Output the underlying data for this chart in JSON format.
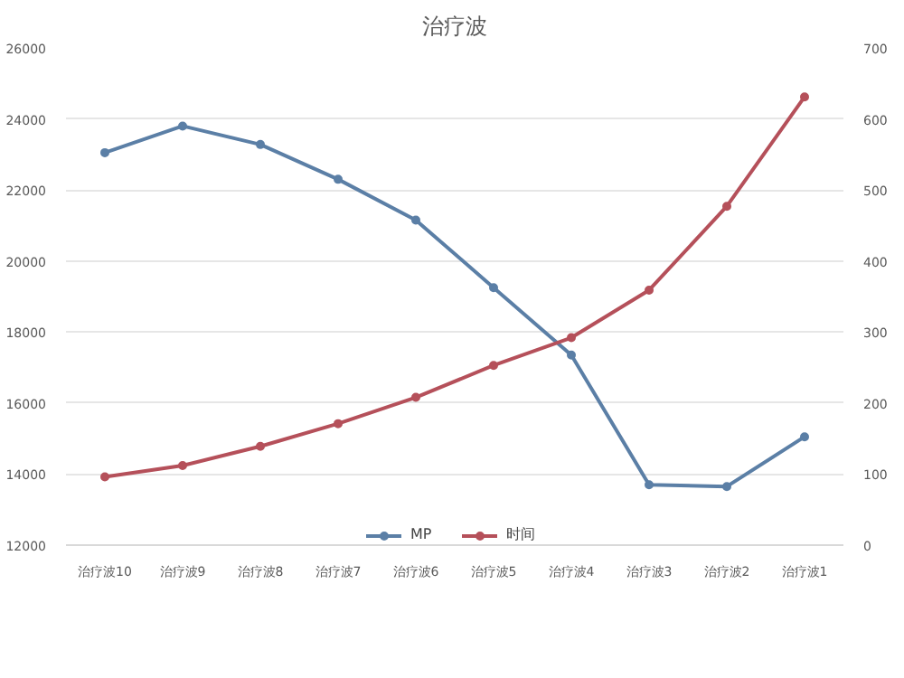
{
  "chart_data": {
    "type": "line",
    "title": "治疗波",
    "categories": [
      "治疗波10",
      "治疗波9",
      "治疗波8",
      "治疗波7",
      "治疗波6",
      "治疗波5",
      "治疗波4",
      "治疗波3",
      "治疗波2",
      "治疗波1"
    ],
    "series": [
      {
        "name": "MP",
        "color": "#5b7fa6",
        "values": [
          23050,
          23800,
          23280,
          22300,
          21150,
          19250,
          17350,
          13700,
          13650,
          15050
        ]
      },
      {
        "name": "时间",
        "color": "#b5505a",
        "axis": "y2",
        "values": [
          96,
          112,
          139,
          171,
          208,
          253,
          292,
          359,
          477,
          631
        ]
      }
    ],
    "ylim": [
      12000,
      26000
    ],
    "yticks": [
      12000,
      14000,
      16000,
      18000,
      20000,
      22000,
      24000,
      26000
    ],
    "y2lim": [
      0,
      700
    ],
    "y2ticks": [
      0,
      100,
      200,
      300,
      400,
      500,
      600,
      700
    ],
    "grid": "y",
    "legend": "bottom",
    "marker": "circle",
    "line_style": "solid"
  }
}
